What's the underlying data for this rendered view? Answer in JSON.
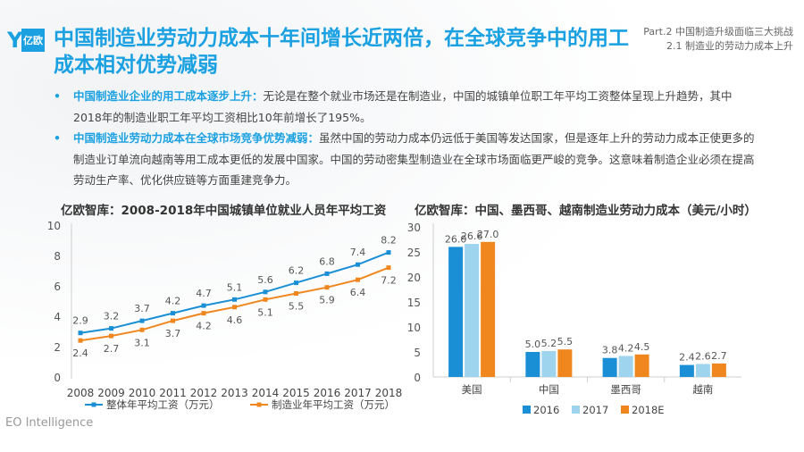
{
  "logo": {
    "text": "亿欧"
  },
  "title": "中国制造业劳动力成本十年间增长近两倍，在全球竞争中的用工成本相对优势减弱",
  "part": {
    "line1": "Part.2 中国制造升级面临三大挑战",
    "line2": "2.1 制造业的劳动力成本上升"
  },
  "bullets": [
    {
      "highlight": "中国制造业企业的用工成本逐步上升：",
      "text": "无论是在整个就业市场还是在制造业，中国的城镇单位职工年平均工资整体呈现上升趋势，其中2018年的制造业职工年平均工资相比10年前增长了195%。"
    },
    {
      "highlight": "中国制造业劳动力成本在全球市场竞争优势减弱：",
      "text": "虽然中国的劳动力成本仍远低于美国等发达国家，但是逐年上升的劳动力成本正使更多的制造业订单流向越南等用工成本更低的发展中国家。中国的劳动密集型制造业在全球市场面临更严峻的竞争。这意味着制造企业必须在提高劳动生产率、优化供应链等方面重建竞争力。"
    }
  ],
  "footer": "EO Intelligence",
  "colors": {
    "accent": "#1ba1e2",
    "blue": "#1a8fd6",
    "orange": "#f0871e",
    "light_blue": "#9fd4ef"
  },
  "chart_data": [
    {
      "type": "line",
      "title": "亿欧智库：2008-2018年中国城镇单位就业人员年平均工资",
      "x": [
        "2008",
        "2009",
        "2010",
        "2011",
        "2012",
        "2013",
        "2014",
        "2015",
        "2016",
        "2017",
        "2018"
      ],
      "yticks": [
        "0",
        "2",
        "4",
        "6",
        "8",
        "10"
      ],
      "ylim": [
        0,
        10
      ],
      "legend_position": "bottom",
      "series": [
        {
          "name": "整体年平均工资（万元）",
          "color": "#1a8fd6",
          "values": [
            2.9,
            3.2,
            3.7,
            4.2,
            4.7,
            5.1,
            5.6,
            6.2,
            6.8,
            7.4,
            8.2
          ],
          "labels": [
            "2.9",
            "3.2",
            "3.7",
            "4.2",
            "4.7",
            "5.1",
            "5.6",
            "6.2",
            "6.8",
            "7.4",
            "8.2"
          ]
        },
        {
          "name": "制造业年平均工资（万元）",
          "color": "#f0871e",
          "values": [
            2.4,
            2.7,
            3.1,
            3.7,
            4.2,
            4.6,
            5.1,
            5.5,
            5.9,
            6.4,
            7.2
          ],
          "labels": [
            "2.4",
            "2.7",
            "3.1",
            "3.7",
            "4.2",
            "4.6",
            "5.1",
            "5.5",
            "5.9",
            "6.4",
            "7.2"
          ]
        }
      ]
    },
    {
      "type": "bar",
      "title": "亿欧智库：中国、墨西哥、越南制造业劳动力成本（美元/小时）",
      "categories": [
        "美国",
        "中国",
        "墨西哥",
        "越南"
      ],
      "yticks": [
        "0",
        "5",
        "10",
        "15",
        "20",
        "25",
        "30"
      ],
      "ylim": [
        0,
        30
      ],
      "legend_position": "bottom",
      "series": [
        {
          "name": "2016",
          "color": "#1a8fd6",
          "values": [
            26.0,
            5.0,
            3.8,
            2.4
          ],
          "labels": [
            "26.0",
            "5.0",
            "3.8",
            "2.4"
          ]
        },
        {
          "name": "2017",
          "color": "#9fd4ef",
          "values": [
            26.6,
            5.2,
            4.2,
            2.6
          ],
          "labels": [
            "26.6",
            "5.2",
            "4.2",
            "2.6"
          ]
        },
        {
          "name": "2018E",
          "color": "#f0871e",
          "values": [
            27.0,
            5.5,
            4.5,
            2.7
          ],
          "labels": [
            "27.0",
            "5.5",
            "4.5",
            "2.7"
          ]
        }
      ]
    }
  ]
}
